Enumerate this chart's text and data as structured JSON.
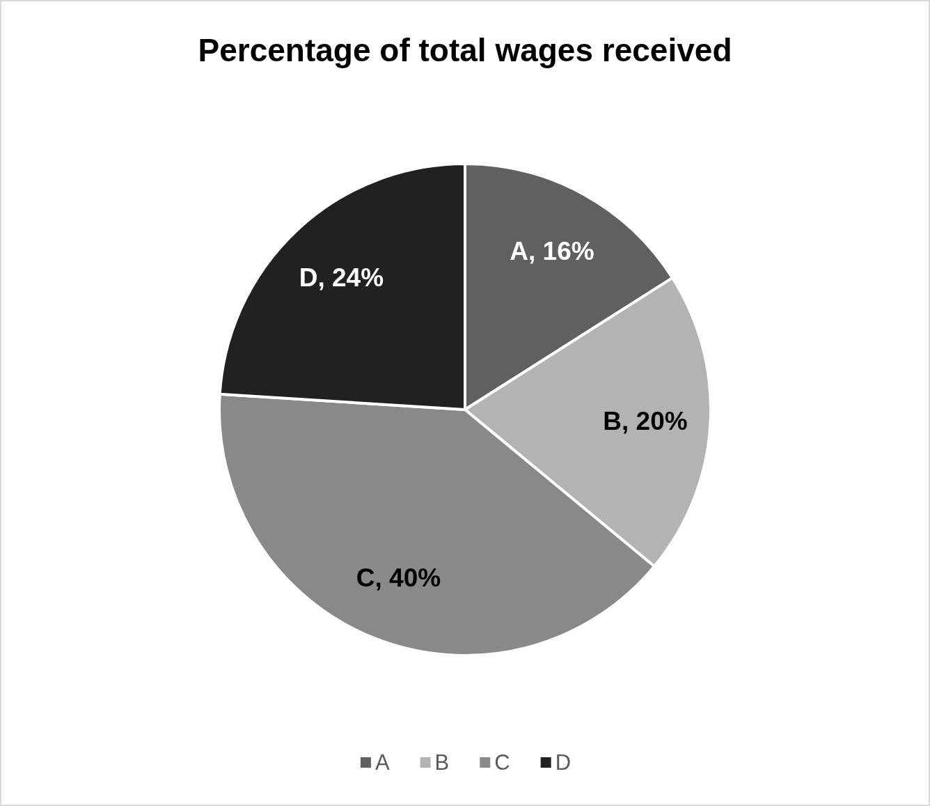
{
  "chart_data": {
    "type": "pie",
    "title": "Percentage of total wages received",
    "categories": [
      "A",
      "B",
      "C",
      "D"
    ],
    "values": [
      16,
      20,
      40,
      24
    ],
    "colors": [
      "#606060",
      "#b3b3b3",
      "#898989",
      "#212121"
    ],
    "value_labels": [
      "A, 16%",
      "B, 20%",
      "C, 40%",
      "D, 24%"
    ],
    "legend": "bottom"
  }
}
